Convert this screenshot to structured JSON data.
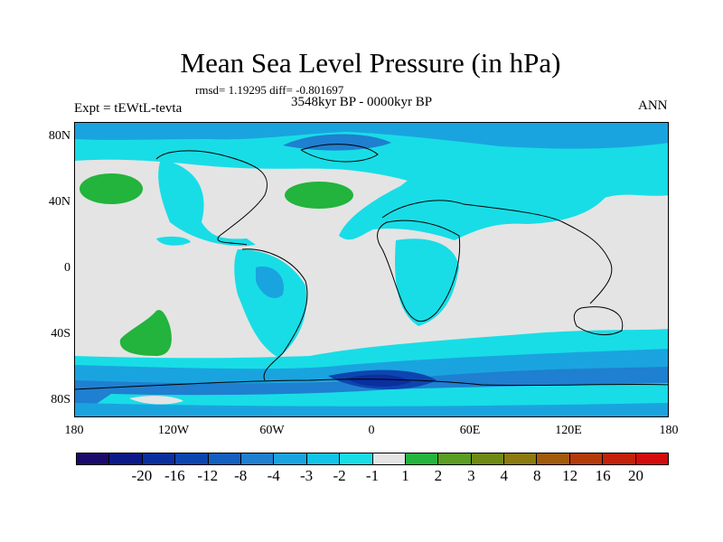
{
  "header": {
    "title": "Mean Sea Level Pressure (in hPa)",
    "stats": "rmsd= 1.19295 diff= -0.801697",
    "period": "3548kyr BP - 0000kyr BP",
    "experiment": "Expt = tEWtL-tevta",
    "season": "ANN"
  },
  "map": {
    "lat_labels": [
      "80N",
      "40N",
      "0",
      "40S",
      "80S"
    ],
    "lon_labels": [
      "180",
      "120W",
      "60W",
      "0",
      "60E",
      "120E",
      "180"
    ]
  },
  "colorbar": {
    "colors": [
      "#1a0a6b",
      "#0b1a88",
      "#0a2f9e",
      "#0d45b0",
      "#1360c1",
      "#1f7fd0",
      "#1aa4df",
      "#12c4e6",
      "#18dde6",
      "#e4e4e4",
      "#22b43c",
      "#5a9d22",
      "#6e8a14",
      "#8a7a10",
      "#a25a0c",
      "#b53a0a",
      "#c4200a",
      "#d40b0b"
    ],
    "labels": [
      "-20",
      "-16",
      "-12",
      "-8",
      "-4",
      "-3",
      "-2",
      "-1",
      "1",
      "2",
      "3",
      "4",
      "8",
      "12",
      "16",
      "20"
    ]
  }
}
